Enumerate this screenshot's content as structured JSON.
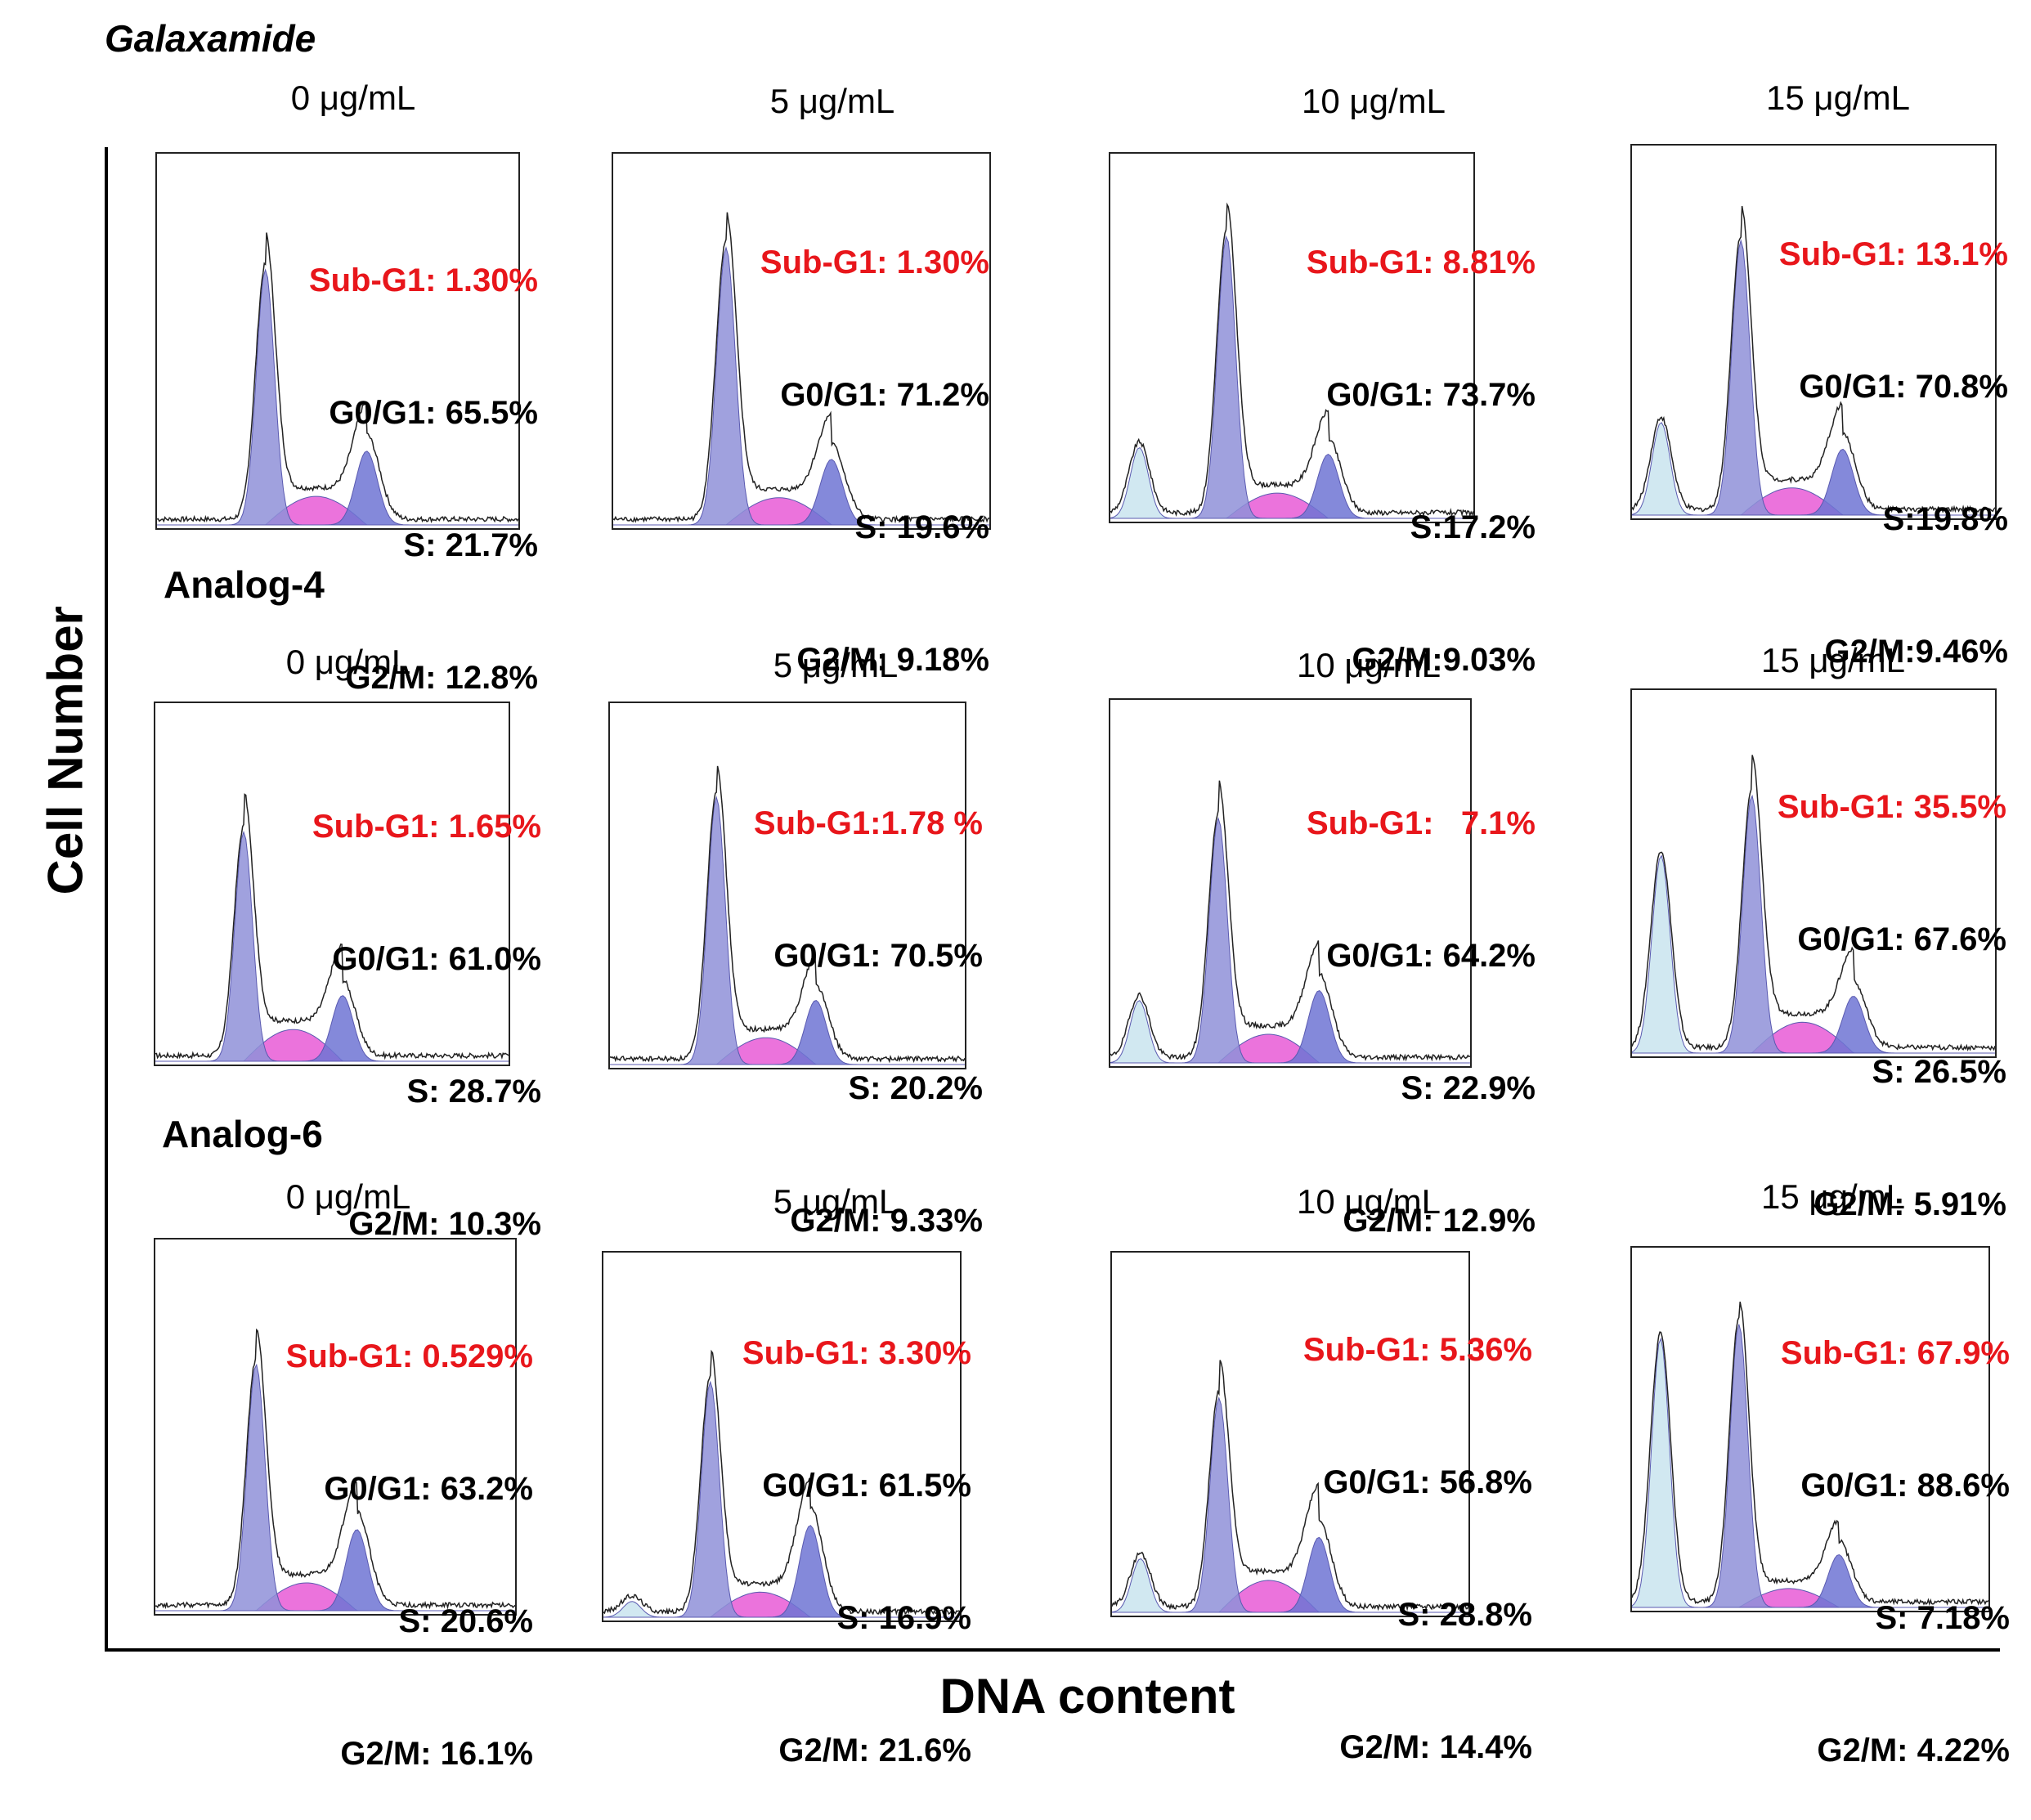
{
  "axis": {
    "y_label": "Cell Number",
    "x_label": "DNA content"
  },
  "colors": {
    "sub_g1": "#e8161b",
    "g0g1_fill": "#8f90d8",
    "s_fill": "#e85ad6",
    "g2m_fill": "#6f74d4",
    "subg1_fill": "#c9e4ee",
    "trace": "#222222"
  },
  "rows": [
    {
      "title": "Galaxamide",
      "italic": true,
      "panels": [
        {
          "conc": "0 μg/mL",
          "lines": [
            "Sub-G1: 1.30%",
            "G0/G1: 65.5%",
            "S: 21.7%",
            "G2/M: 12.8%"
          ]
        },
        {
          "conc": "5 μg/mL",
          "lines": [
            "Sub-G1: 1.30%",
            "G0/G1: 71.2%",
            "S: 19.6%",
            "G2/M: 9.18%"
          ]
        },
        {
          "conc": "10 μg/mL",
          "lines": [
            "Sub-G1: 8.81%",
            "G0/G1: 73.7%",
            "S:17.2%",
            "G2/M:9.03%"
          ]
        },
        {
          "conc": "15 μg/mL",
          "lines": [
            "Sub-G1: 13.1%",
            "G0/G1: 70.8%",
            "S:19.8%",
            "G2/M:9.46%"
          ]
        }
      ]
    },
    {
      "title": "Analog-4",
      "italic": false,
      "panels": [
        {
          "conc": "0 μg/mL",
          "lines": [
            "Sub-G1: 1.65%",
            "G0/G1: 61.0%",
            "S: 28.7%",
            "G2/M: 10.3%"
          ]
        },
        {
          "conc": "5 μg/mL",
          "lines": [
            "Sub-G1:1.78 %",
            "G0/G1: 70.5%",
            "S: 20.2%",
            "G2/M: 9.33%"
          ]
        },
        {
          "conc": "10 μg/mL",
          "lines": [
            "Sub-G1:   7.1%",
            "G0/G1: 64.2%",
            "S: 22.9%",
            "G2/M: 12.9%"
          ]
        },
        {
          "conc": "15 μg/mL",
          "lines": [
            "Sub-G1: 35.5%",
            "G0/G1: 67.6%",
            "S: 26.5%",
            "G2/M: 5.91%"
          ]
        }
      ]
    },
    {
      "title": "Analog-6",
      "italic": false,
      "panels": [
        {
          "conc": "0 μg/mL",
          "lines": [
            "Sub-G1: 0.529%",
            "G0/G1: 63.2%",
            "S: 20.6%",
            "G2/M: 16.1%"
          ]
        },
        {
          "conc": "5 μg/mL",
          "lines": [
            "Sub-G1: 3.30%",
            "G0/G1: 61.5%",
            "S: 16.9%",
            "G2/M: 21.6%"
          ]
        },
        {
          "conc": "10 μg/mL",
          "lines": [
            "Sub-G1: 5.36%",
            "G0/G1: 56.8%",
            "S: 28.8%",
            "G2/M: 14.4%"
          ]
        },
        {
          "conc": "15 μg/mL",
          "lines": [
            "Sub-G1: 67.9%",
            "G0/G1: 88.6%",
            "S: 7.18%",
            "G2/M: 4.22%"
          ]
        }
      ]
    }
  ],
  "chart_data": {
    "type": "area",
    "title": "",
    "xlabel": "DNA content",
    "ylabel": "Cell Number",
    "description_of_series": "Cell-cycle DNA histograms per compound and concentration",
    "series": [
      {
        "name": "Galaxamide 0 μg/mL",
        "sub_g1": 1.3,
        "g0_g1": 65.5,
        "s": 21.7,
        "g2_m": 12.8
      },
      {
        "name": "Galaxamide 5 μg/mL",
        "sub_g1": 1.3,
        "g0_g1": 71.2,
        "s": 19.6,
        "g2_m": 9.18
      },
      {
        "name": "Galaxamide 10 μg/mL",
        "sub_g1": 8.81,
        "g0_g1": 73.7,
        "s": 17.2,
        "g2_m": 9.03
      },
      {
        "name": "Galaxamide 15 μg/mL",
        "sub_g1": 13.1,
        "g0_g1": 70.8,
        "s": 19.8,
        "g2_m": 9.46
      },
      {
        "name": "Analog-4 0 μg/mL",
        "sub_g1": 1.65,
        "g0_g1": 61.0,
        "s": 28.7,
        "g2_m": 10.3
      },
      {
        "name": "Analog-4 5 μg/mL",
        "sub_g1": 1.78,
        "g0_g1": 70.5,
        "s": 20.2,
        "g2_m": 9.33
      },
      {
        "name": "Analog-4 10 μg/mL",
        "sub_g1": 7.1,
        "g0_g1": 64.2,
        "s": 22.9,
        "g2_m": 12.9
      },
      {
        "name": "Analog-4 15 μg/mL",
        "sub_g1": 35.5,
        "g0_g1": 67.6,
        "s": 26.5,
        "g2_m": 5.91
      },
      {
        "name": "Analog-6 0 μg/mL",
        "sub_g1": 0.529,
        "g0_g1": 63.2,
        "s": 20.6,
        "g2_m": 16.1
      },
      {
        "name": "Analog-6 5 μg/mL",
        "sub_g1": 3.3,
        "g0_g1": 61.5,
        "s": 16.9,
        "g2_m": 21.6
      },
      {
        "name": "Analog-6 10 μg/mL",
        "sub_g1": 5.36,
        "g0_g1": 56.8,
        "s": 28.8,
        "g2_m": 14.4
      },
      {
        "name": "Analog-6 15 μg/mL",
        "sub_g1": 67.9,
        "g0_g1": 88.6,
        "s": 7.18,
        "g2_m": 4.22
      }
    ]
  }
}
